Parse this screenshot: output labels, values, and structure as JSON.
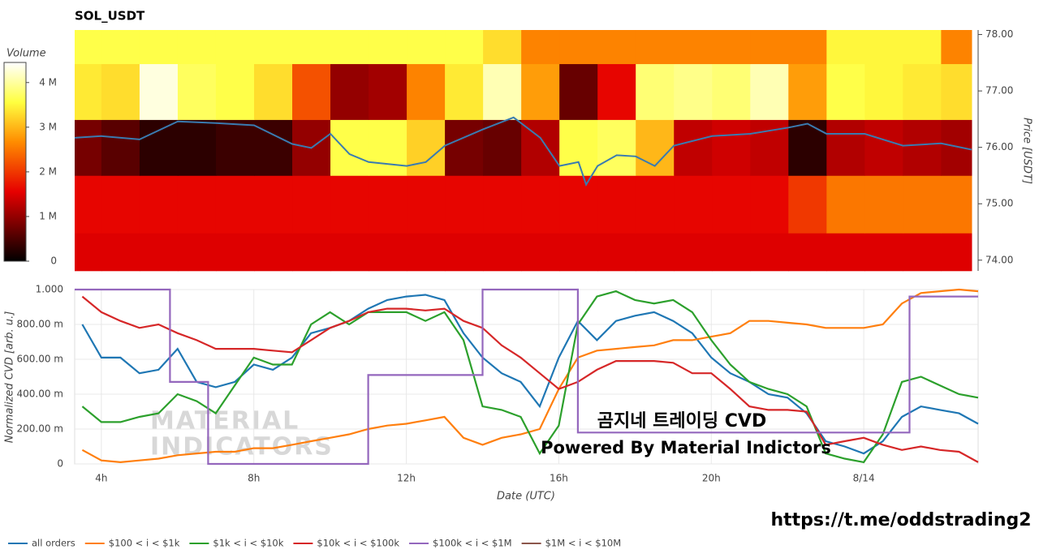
{
  "chart_data": [
    {
      "type": "heatmap",
      "title": "SOL_USDT",
      "colorbar_label": "Volume",
      "y2label": "Price [USDT]",
      "xlim": [
        3.3,
        26.8
      ],
      "ylim": [
        73.81,
        78.08
      ],
      "yticks": [
        {
          "value": 74,
          "label": "74.00"
        },
        {
          "value": 75,
          "label": "75.00"
        },
        {
          "value": 76,
          "label": "76.00"
        },
        {
          "value": 77,
          "label": "77.00"
        },
        {
          "value": 78,
          "label": "78.00"
        }
      ],
      "zlim": [
        0,
        4450000
      ],
      "zticks": [
        0,
        {
          "value": 1000000,
          "label": "1 M"
        },
        {
          "value": 2000000,
          "label": "2 M"
        },
        {
          "value": 3000000,
          "label": "3 M"
        },
        {
          "value": 4000000,
          "label": "4 M"
        }
      ],
      "colorscale": [
        [
          0,
          "#000000"
        ],
        [
          0.35,
          "#e60000"
        ],
        [
          0.6,
          "#ff8c00"
        ],
        [
          0.8,
          "#ffff40"
        ],
        [
          1,
          "#ffffff"
        ]
      ],
      "x_edges": [
        3.3,
        4,
        5,
        6,
        7,
        8,
        9,
        10,
        11,
        12,
        13,
        14,
        15,
        16,
        17,
        18,
        19,
        20,
        21,
        22,
        23,
        24,
        25,
        26,
        26.8
      ],
      "y_edges": [
        73.81,
        74.48,
        75.5,
        76.49,
        77.48,
        78.08
      ],
      "z": [
        [
          1500000,
          1500000,
          1500000,
          1500000,
          1500000,
          1500000,
          1500000,
          1500000,
          1500000,
          1500000,
          1500000,
          1500000,
          1500000,
          1500000,
          1500000,
          1500000,
          1500000,
          1500000,
          1500000,
          1500000,
          1500000,
          1500000,
          1500000,
          1500000
        ],
        [
          1600000,
          1600000,
          1600000,
          1600000,
          1600000,
          1600000,
          1600000,
          1600000,
          1600000,
          1600000,
          1600000,
          1600000,
          1600000,
          1600000,
          1600000,
          1600000,
          1600000,
          1600000,
          1600000,
          2000000,
          2500000,
          2500000,
          2500000,
          2500000
        ],
        [
          800000,
          600000,
          300000,
          300000,
          400000,
          400000,
          1000000,
          3600000,
          3600000,
          3200000,
          800000,
          700000,
          1200000,
          3600000,
          3700000,
          3000000,
          1300000,
          1400000,
          1300000,
          300000,
          1200000,
          1300000,
          1200000,
          1100000
        ],
        [
          3400000,
          3300000,
          4300000,
          3700000,
          3600000,
          3300000,
          2200000,
          1000000,
          1100000,
          2600000,
          3400000,
          4100000,
          2800000,
          700000,
          1600000,
          3800000,
          3900000,
          3800000,
          4100000,
          2800000,
          3600000,
          3500000,
          3400000,
          3300000
        ],
        [
          3600000,
          3600000,
          3600000,
          3600000,
          3600000,
          3600000,
          3600000,
          3600000,
          3600000,
          3600000,
          3600000,
          3300000,
          2600000,
          2600000,
          2600000,
          2600000,
          2600000,
          2600000,
          2600000,
          2600000,
          3500000,
          3500000,
          3500000,
          2600000
        ]
      ],
      "price": {
        "color": "#3a7bb0",
        "x": [
          3.3,
          4,
          5,
          6,
          7,
          8,
          9,
          9.5,
          10,
          10.5,
          11,
          12,
          12.5,
          13,
          14,
          14.8,
          15.5,
          16,
          16.5,
          16.7,
          17,
          17.5,
          18,
          18.5,
          19,
          20,
          21,
          22,
          22.5,
          23,
          24,
          25,
          26,
          26.8
        ],
        "values": [
          76.17,
          76.2,
          76.14,
          76.46,
          76.43,
          76.39,
          76.06,
          75.99,
          76.24,
          75.88,
          75.74,
          75.67,
          75.74,
          76.03,
          76.32,
          76.53,
          76.17,
          75.67,
          75.74,
          75.34,
          75.67,
          75.86,
          75.84,
          75.67,
          76.03,
          76.2,
          76.24,
          76.35,
          76.42,
          76.24,
          76.24,
          76.03,
          76.07,
          75.96
        ]
      }
    },
    {
      "type": "line",
      "ylabel": "Normalized CVD [arb. u.]",
      "xlabel": "Date (UTC)",
      "grid": true,
      "legend": "bottom-left",
      "xlim": [
        3.3,
        27.0
      ],
      "ylim": [
        0,
        1
      ],
      "xticks": [
        {
          "value": 4,
          "label": "4h"
        },
        {
          "value": 8,
          "label": "8h"
        },
        {
          "value": 12,
          "label": "12h"
        },
        {
          "value": 16,
          "label": "16h"
        },
        {
          "value": 20,
          "label": "20h"
        },
        {
          "value": 24,
          "label": "8/14"
        }
      ],
      "yticks": [
        0,
        {
          "value": 0.2,
          "label": "200.00 m"
        },
        {
          "value": 0.4,
          "label": "400.00 m"
        },
        {
          "value": 0.6,
          "label": "600.00 m"
        },
        {
          "value": 0.8,
          "label": "800.00 m"
        },
        {
          "value": 1,
          "label": "1.000"
        }
      ],
      "annotations": [
        "곰지네 트레이딩 CVD",
        "Powered By Material Indictors",
        "https://t.me/oddstrading2"
      ],
      "watermark": [
        "MATERIAL",
        "INDICATORS"
      ],
      "x": [
        3.5,
        4,
        4.5,
        5,
        5.5,
        6,
        6.5,
        7,
        7.5,
        8,
        8.5,
        9,
        9.5,
        10,
        10.5,
        11,
        11.5,
        12,
        12.5,
        13,
        13.5,
        14,
        14.5,
        15,
        15.5,
        16,
        16.5,
        17,
        17.5,
        18,
        18.5,
        19,
        19.5,
        20,
        20.5,
        21,
        21.5,
        22,
        22.5,
        23,
        23.5,
        24,
        24.5,
        25,
        25.5,
        26,
        26.5,
        27
      ],
      "series": [
        {
          "name": "all orders",
          "color": "#1f77b4",
          "values": [
            0.8,
            0.61,
            0.61,
            0.52,
            0.54,
            0.66,
            0.47,
            0.44,
            0.47,
            0.57,
            0.54,
            0.61,
            0.75,
            0.78,
            0.82,
            0.89,
            0.94,
            0.96,
            0.97,
            0.94,
            0.75,
            0.61,
            0.52,
            0.47,
            0.33,
            0.61,
            0.82,
            0.71,
            0.82,
            0.85,
            0.87,
            0.82,
            0.75,
            0.61,
            0.52,
            0.47,
            0.4,
            0.38,
            0.29,
            0.13,
            0.1,
            0.06,
            0.13,
            0.27,
            0.33,
            0.31,
            0.29,
            0.23
          ]
        },
        {
          "name": "$100 < i < $1k",
          "color": "#ff7f0e",
          "values": [
            0.08,
            0.02,
            0.01,
            0.02,
            0.03,
            0.05,
            0.06,
            0.07,
            0.07,
            0.09,
            0.09,
            0.11,
            0.13,
            0.15,
            0.17,
            0.2,
            0.22,
            0.23,
            0.25,
            0.27,
            0.15,
            0.11,
            0.15,
            0.17,
            0.2,
            0.43,
            0.61,
            0.65,
            0.66,
            0.67,
            0.68,
            0.71,
            0.71,
            0.73,
            0.75,
            0.82,
            0.82,
            0.81,
            0.8,
            0.78,
            0.78,
            0.78,
            0.8,
            0.92,
            0.98,
            0.99,
            1.0,
            0.99
          ]
        },
        {
          "name": "$1k < i < $10k",
          "color": "#2ca02c",
          "values": [
            0.33,
            0.24,
            0.24,
            0.27,
            0.29,
            0.4,
            0.36,
            0.29,
            0.45,
            0.61,
            0.57,
            0.57,
            0.8,
            0.87,
            0.8,
            0.87,
            0.87,
            0.87,
            0.82,
            0.87,
            0.71,
            0.33,
            0.31,
            0.27,
            0.06,
            0.22,
            0.8,
            0.96,
            0.99,
            0.94,
            0.92,
            0.94,
            0.87,
            0.71,
            0.57,
            0.47,
            0.43,
            0.4,
            0.33,
            0.06,
            0.03,
            0.01,
            0.17,
            0.47,
            0.5,
            0.45,
            0.4,
            0.38
          ]
        },
        {
          "name": "$10k < i < $100k",
          "color": "#d62728",
          "values": [
            0.96,
            0.87,
            0.82,
            0.78,
            0.8,
            0.75,
            0.71,
            0.66,
            0.66,
            0.66,
            0.65,
            0.64,
            0.71,
            0.78,
            0.82,
            0.87,
            0.89,
            0.89,
            0.88,
            0.89,
            0.82,
            0.78,
            0.68,
            0.61,
            0.52,
            0.43,
            0.47,
            0.54,
            0.59,
            0.59,
            0.59,
            0.58,
            0.52,
            0.52,
            0.43,
            0.33,
            0.31,
            0.31,
            0.3,
            0.11,
            0.13,
            0.15,
            0.11,
            0.08,
            0.1,
            0.08,
            0.07,
            0.01
          ]
        },
        {
          "name": "$100k < i < $1M",
          "color": "#9467bd",
          "x": [
            3.3,
            5.8,
            5.8,
            6.8,
            6.8,
            11,
            11,
            14,
            14,
            16.5,
            16.5,
            25.2,
            25.2,
            27
          ],
          "values": [
            1,
            1,
            0.47,
            0.47,
            0,
            0,
            0.51,
            0.51,
            1,
            1,
            0.18,
            0.18,
            0.96,
            0.96
          ]
        },
        {
          "name": "$1M < i < $10M",
          "color": "#8c564b",
          "values": [
            null,
            null,
            null,
            null,
            null,
            null,
            null,
            null,
            null,
            null,
            null,
            null,
            null,
            null,
            null,
            null,
            null,
            null,
            null,
            null,
            null,
            null,
            null,
            null,
            null,
            null,
            null,
            null,
            null,
            null,
            null,
            null,
            null,
            null,
            null,
            null,
            null,
            null,
            null,
            null,
            null,
            null,
            null,
            null,
            null,
            null,
            null,
            null
          ]
        }
      ]
    }
  ]
}
